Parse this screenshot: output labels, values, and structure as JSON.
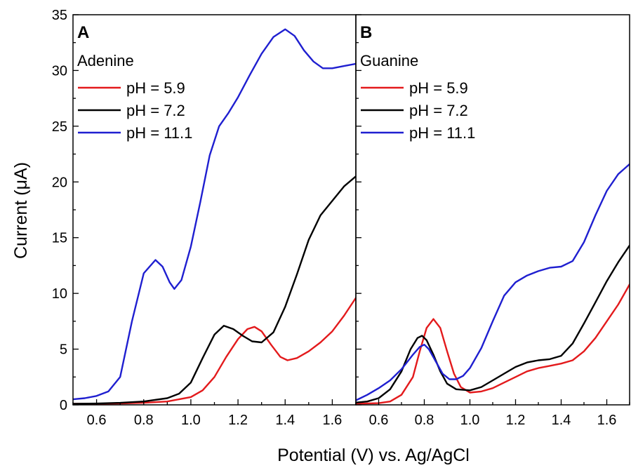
{
  "chart_data": [
    {
      "type": "line",
      "panel_label": "A",
      "legend_title": "Adenine",
      "xlabel": "Potential (V) vs. Ag/AgCl",
      "ylabel": "Current (μA)",
      "xlim": [
        0.5,
        1.7
      ],
      "ylim": [
        0,
        35
      ],
      "xticks": [
        0.6,
        0.8,
        1.0,
        1.2,
        1.4,
        1.6
      ],
      "xtick_labels": [
        "0.6",
        "0.8",
        "1.0",
        "1.2",
        "1.4",
        "1.6"
      ],
      "yticks": [
        0,
        5,
        10,
        15,
        20,
        25,
        30,
        35
      ],
      "ytick_labels": [
        "0",
        "5",
        "10",
        "15",
        "20",
        "25",
        "30",
        "35"
      ],
      "legend_position": "top-left",
      "grid": false,
      "series": [
        {
          "name": "pH = 5.9",
          "color": "#e31a1c",
          "x": [
            0.5,
            0.6,
            0.7,
            0.8,
            0.9,
            1.0,
            1.05,
            1.1,
            1.15,
            1.2,
            1.24,
            1.27,
            1.3,
            1.34,
            1.38,
            1.41,
            1.45,
            1.5,
            1.55,
            1.6,
            1.65,
            1.7
          ],
          "y": [
            0.1,
            0.1,
            0.12,
            0.18,
            0.3,
            0.7,
            1.3,
            2.5,
            4.3,
            5.9,
            6.8,
            7.0,
            6.6,
            5.4,
            4.3,
            4.0,
            4.2,
            4.8,
            5.6,
            6.6,
            8.0,
            9.6
          ]
        },
        {
          "name": "pH = 7.2",
          "color": "#000000",
          "x": [
            0.5,
            0.6,
            0.7,
            0.8,
            0.9,
            0.95,
            1.0,
            1.05,
            1.1,
            1.14,
            1.18,
            1.22,
            1.26,
            1.3,
            1.35,
            1.4,
            1.45,
            1.5,
            1.55,
            1.6,
            1.65,
            1.7
          ],
          "y": [
            0.1,
            0.12,
            0.18,
            0.3,
            0.6,
            1.0,
            2.0,
            4.2,
            6.3,
            7.1,
            6.8,
            6.2,
            5.7,
            5.6,
            6.5,
            8.8,
            11.7,
            14.8,
            17.0,
            18.3,
            19.6,
            20.5
          ]
        },
        {
          "name": "pH = 11.1",
          "color": "#1f1fd0",
          "x": [
            0.5,
            0.55,
            0.6,
            0.65,
            0.7,
            0.75,
            0.8,
            0.85,
            0.88,
            0.91,
            0.93,
            0.96,
            1.0,
            1.04,
            1.08,
            1.12,
            1.16,
            1.2,
            1.25,
            1.3,
            1.35,
            1.4,
            1.44,
            1.48,
            1.52,
            1.56,
            1.6,
            1.65,
            1.7
          ],
          "y": [
            0.5,
            0.6,
            0.8,
            1.2,
            2.5,
            7.5,
            11.8,
            13.0,
            12.4,
            11.0,
            10.4,
            11.2,
            14.2,
            18.2,
            22.4,
            25.0,
            26.2,
            27.6,
            29.6,
            31.5,
            33.0,
            33.7,
            33.1,
            31.8,
            30.8,
            30.2,
            30.2,
            30.4,
            30.6
          ]
        }
      ]
    },
    {
      "type": "line",
      "panel_label": "B",
      "legend_title": "Guanine",
      "xlabel": "Potential (V) vs. Ag/AgCl",
      "ylabel": "Current (μA)",
      "xlim": [
        0.5,
        1.7
      ],
      "ylim": [
        0,
        35
      ],
      "xticks": [
        0.6,
        0.8,
        1.0,
        1.2,
        1.4,
        1.6
      ],
      "xtick_labels": [
        "0.6",
        "0.8",
        "1.0",
        "1.2",
        "1.4",
        "1.6"
      ],
      "yticks": [
        0,
        5,
        10,
        15,
        20,
        25,
        30,
        35
      ],
      "legend_position": "top-left",
      "grid": false,
      "series": [
        {
          "name": "pH = 5.9",
          "color": "#e31a1c",
          "x": [
            0.5,
            0.6,
            0.65,
            0.7,
            0.75,
            0.78,
            0.81,
            0.84,
            0.87,
            0.9,
            0.93,
            0.96,
            1.0,
            1.05,
            1.1,
            1.15,
            1.2,
            1.25,
            1.3,
            1.35,
            1.4,
            1.45,
            1.5,
            1.55,
            1.6,
            1.65,
            1.7
          ],
          "y": [
            0.1,
            0.15,
            0.3,
            0.9,
            2.5,
            4.8,
            6.9,
            7.7,
            6.9,
            4.8,
            2.8,
            1.6,
            1.1,
            1.2,
            1.5,
            2.0,
            2.5,
            3.0,
            3.3,
            3.5,
            3.7,
            4.0,
            4.8,
            6.0,
            7.5,
            9.0,
            10.8
          ]
        },
        {
          "name": "pH = 7.2",
          "color": "#000000",
          "x": [
            0.5,
            0.55,
            0.6,
            0.65,
            0.7,
            0.74,
            0.77,
            0.79,
            0.81,
            0.84,
            0.87,
            0.9,
            0.94,
            1.0,
            1.05,
            1.1,
            1.15,
            1.2,
            1.25,
            1.3,
            1.35,
            1.4,
            1.45,
            1.5,
            1.55,
            1.6,
            1.65,
            1.7
          ],
          "y": [
            0.2,
            0.3,
            0.6,
            1.4,
            3.0,
            5.0,
            6.0,
            6.2,
            5.8,
            4.5,
            3.0,
            1.9,
            1.4,
            1.3,
            1.6,
            2.2,
            2.8,
            3.4,
            3.8,
            4.0,
            4.1,
            4.4,
            5.5,
            7.3,
            9.2,
            11.1,
            12.8,
            14.3
          ]
        },
        {
          "name": "pH = 11.1",
          "color": "#1f1fd0",
          "x": [
            0.5,
            0.55,
            0.6,
            0.65,
            0.7,
            0.75,
            0.78,
            0.8,
            0.82,
            0.85,
            0.88,
            0.91,
            0.94,
            0.97,
            1.0,
            1.05,
            1.1,
            1.15,
            1.2,
            1.25,
            1.3,
            1.35,
            1.4,
            1.45,
            1.5,
            1.55,
            1.6,
            1.65,
            1.7
          ],
          "y": [
            0.4,
            0.9,
            1.5,
            2.2,
            3.2,
            4.5,
            5.2,
            5.4,
            5.0,
            3.9,
            2.8,
            2.3,
            2.3,
            2.6,
            3.3,
            5.1,
            7.5,
            9.8,
            11.0,
            11.6,
            12.0,
            12.3,
            12.4,
            12.9,
            14.6,
            17.0,
            19.2,
            20.7,
            21.6
          ]
        }
      ]
    }
  ]
}
